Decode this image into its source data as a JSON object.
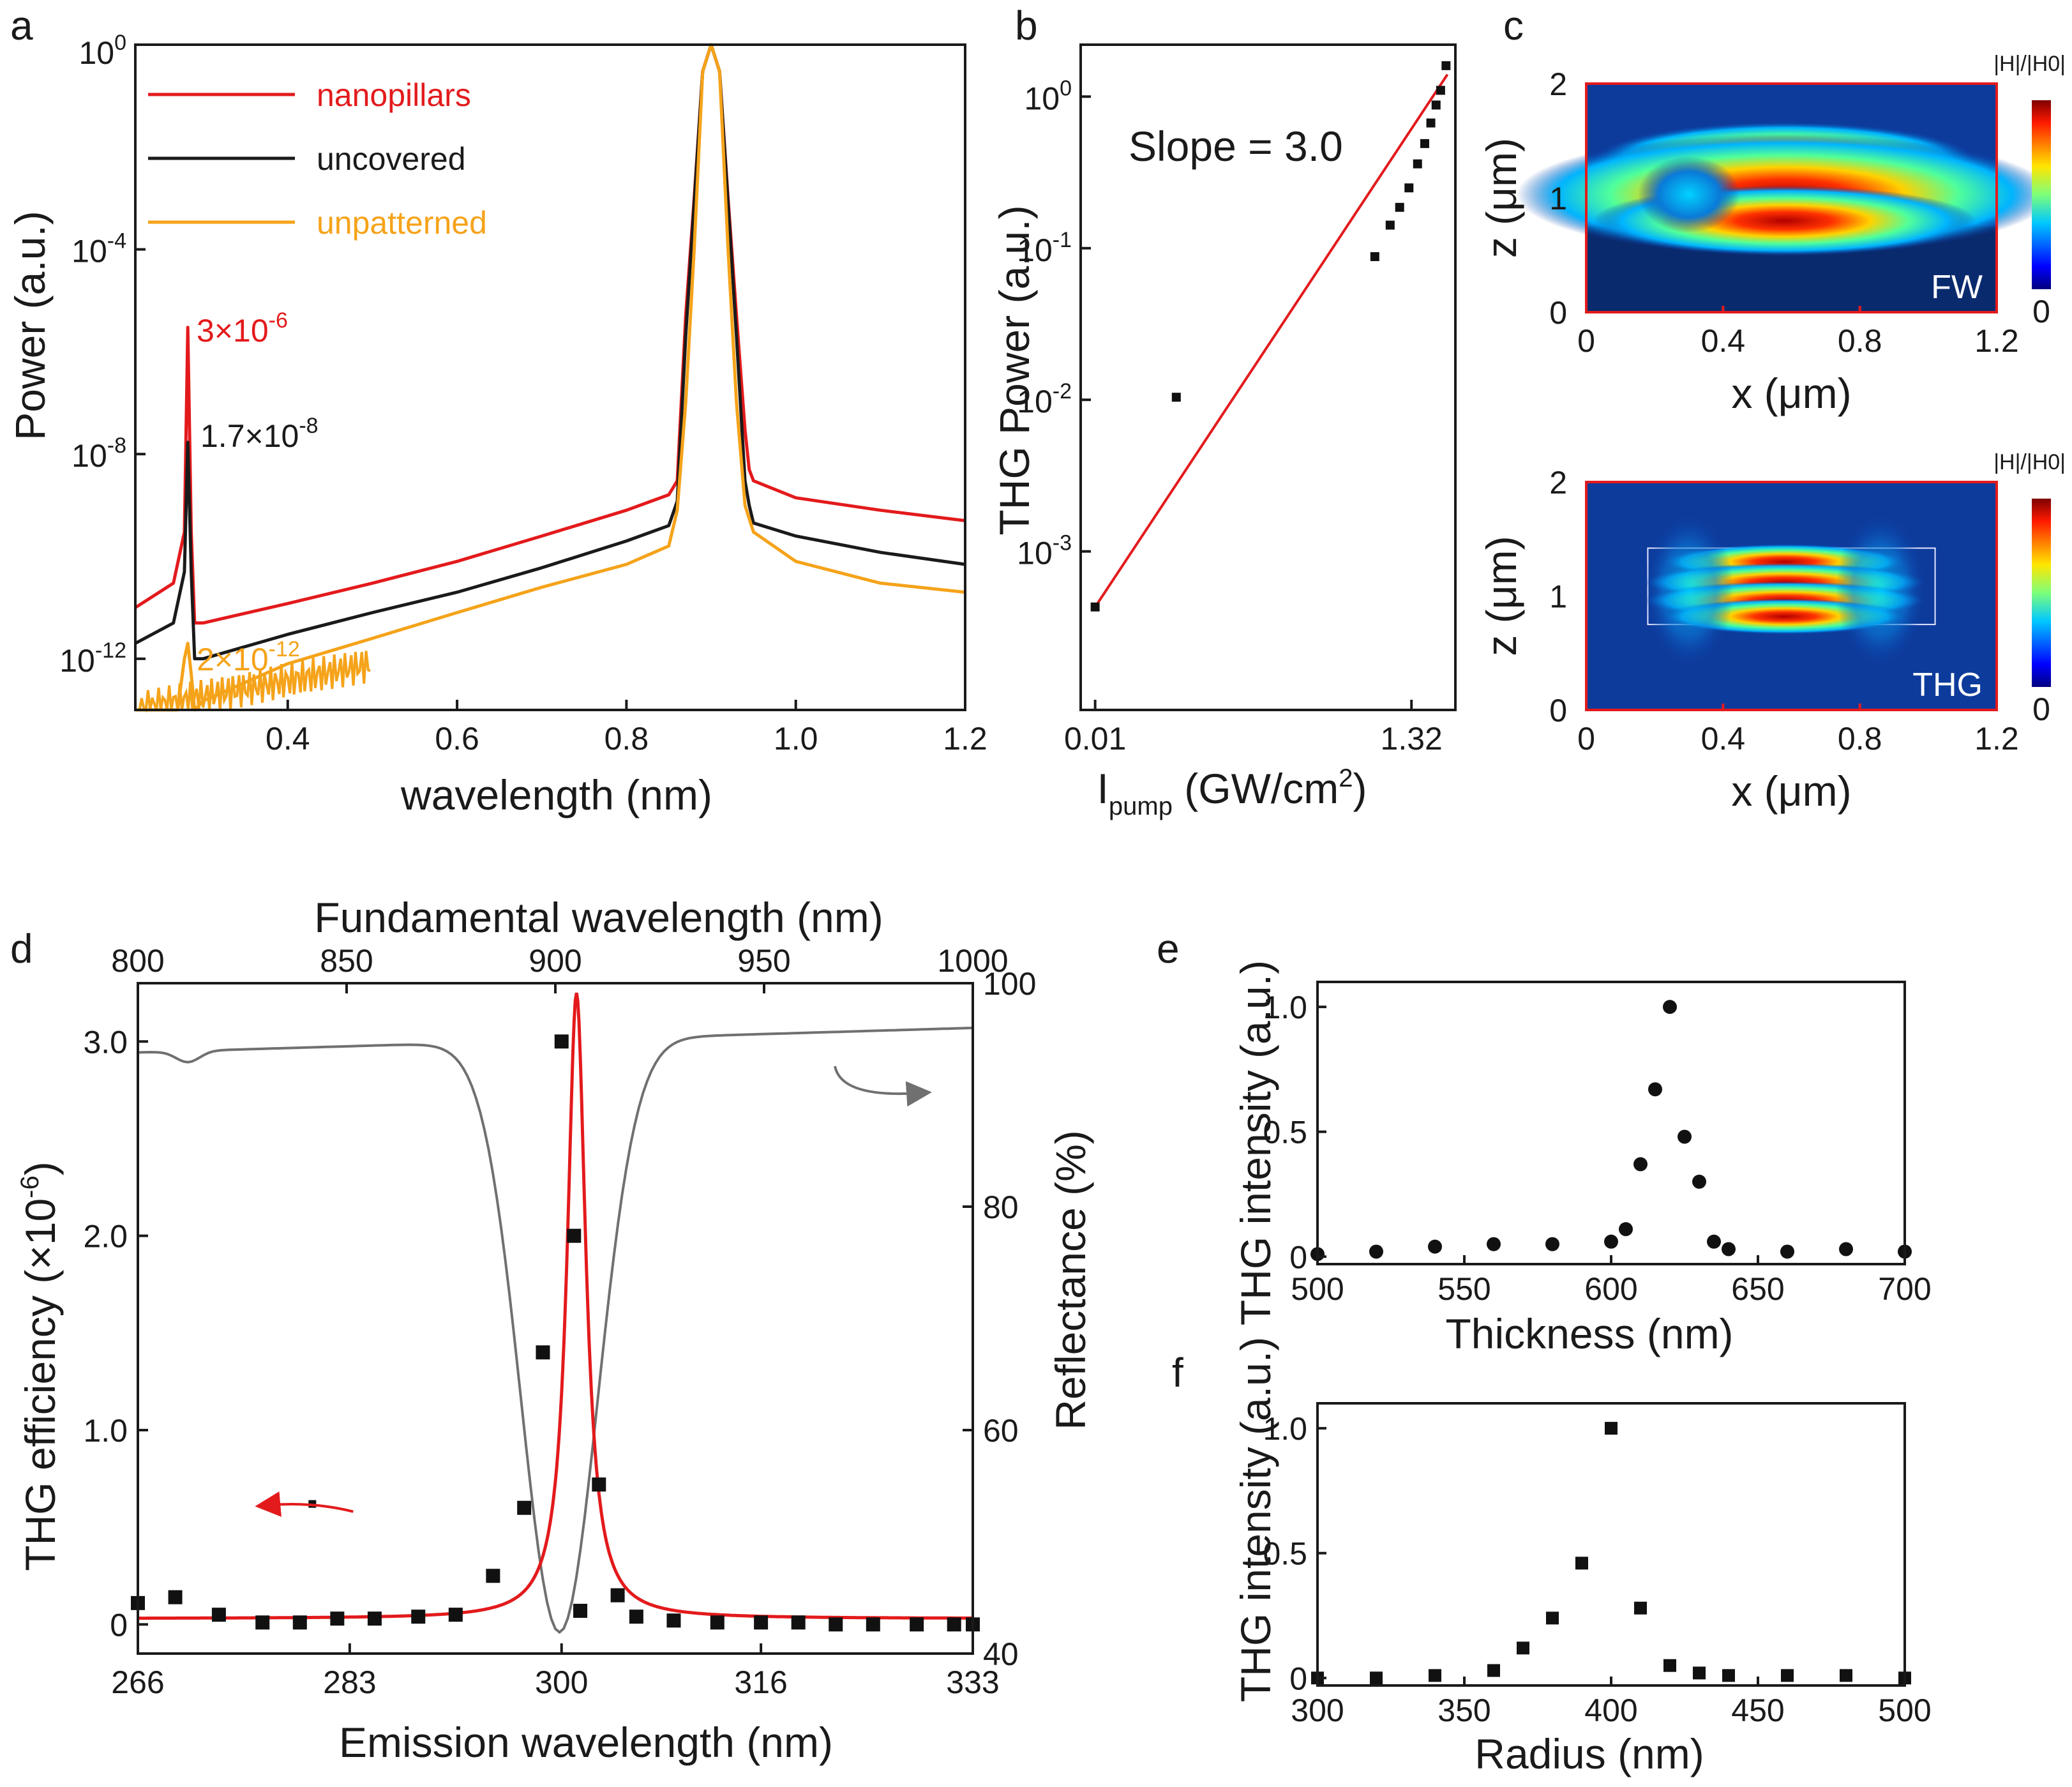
{
  "chart_data": [
    {
      "panel": "a",
      "type": "line",
      "xlabel": "wavelength (nm)",
      "ylabel": "Power (a.u.)",
      "xlim": [
        0.22,
        1.2
      ],
      "ylim": [
        1e-13,
        1
      ],
      "yscale": "log",
      "xticks": [
        "0.4",
        "0.6",
        "0.8",
        "1.0",
        "1.2"
      ],
      "yticks": [
        {
          "base": "10",
          "exp": "0"
        },
        {
          "base": "10",
          "exp": "-4"
        },
        {
          "base": "10",
          "exp": "-8"
        },
        {
          "base": "10",
          "exp": "-12"
        }
      ],
      "legend": [
        "nanopillars",
        "uncovered",
        "unpatterned"
      ],
      "legend_position": "top-left",
      "annotations": [
        {
          "text": "3×10",
          "exp": "-6",
          "color": "#e31a1c"
        },
        {
          "text": "1.7×10",
          "exp": "-8",
          "color": "#1a1a1a"
        },
        {
          "text": "2×10",
          "exp": "-12",
          "color": "#f5a31a"
        }
      ],
      "series": [
        {
          "name": "nanopillars",
          "color": "#e31a1c",
          "x": [
            0.22,
            0.265,
            0.278,
            0.282,
            0.286,
            0.29,
            0.3,
            0.4,
            0.5,
            0.6,
            0.7,
            0.8,
            0.85,
            0.86,
            0.87,
            0.88,
            0.89,
            0.9,
            0.91,
            0.92,
            0.93,
            0.94,
            0.945,
            0.95,
            1.0,
            1.1,
            1.2
          ],
          "y": [
            1e-11,
            3e-11,
            3e-10,
            3e-06,
            3e-10,
            5e-12,
            5e-12,
            1.2e-11,
            3e-11,
            8e-11,
            2.5e-10,
            8e-10,
            1.6e-09,
            3e-09,
            5e-06,
            0.001,
            0.3,
            1,
            0.3,
            0.001,
            5e-06,
            3e-08,
            5e-09,
            3e-09,
            1.4e-09,
            8e-10,
            5e-10
          ]
        },
        {
          "name": "uncovered",
          "color": "#1a1a1a",
          "x": [
            0.22,
            0.265,
            0.278,
            0.282,
            0.286,
            0.29,
            0.3,
            0.4,
            0.5,
            0.6,
            0.7,
            0.8,
            0.85,
            0.86,
            0.87,
            0.88,
            0.89,
            0.9,
            0.91,
            0.92,
            0.93,
            0.94,
            0.945,
            0.95,
            1.0,
            1.1,
            1.2
          ],
          "y": [
            2e-12,
            5e-12,
            5e-11,
            1.7e-08,
            5e-11,
            1e-12,
            1e-12,
            3e-12,
            8e-12,
            2e-11,
            6e-11,
            2e-10,
            4e-10,
            1.2e-09,
            2e-06,
            0.0008,
            0.3,
            1,
            0.3,
            0.0008,
            2e-06,
            3e-09,
            1e-09,
            4.5e-10,
            2.5e-10,
            1.2e-10,
            7e-11
          ]
        },
        {
          "name": "unpatterned",
          "color": "#f5a31a",
          "x": [
            0.22,
            0.27,
            0.278,
            0.282,
            0.286,
            0.29,
            0.3,
            0.4,
            0.5,
            0.6,
            0.7,
            0.8,
            0.85,
            0.86,
            0.87,
            0.88,
            0.89,
            0.9,
            0.91,
            0.92,
            0.93,
            0.94,
            0.95,
            1.0,
            1.1,
            1.2
          ],
          "y": [
            1e-13,
            1e-13,
            1e-12,
            2e-12,
            5e-13,
            1e-13,
            1.5e-13,
            8e-13,
            2.5e-12,
            8e-12,
            2.5e-11,
            7e-11,
            1.6e-10,
            8e-10,
            1e-07,
            0.0001,
            0.3,
            1,
            0.3,
            0.0001,
            1e-07,
            1e-09,
            3e-10,
            8e-11,
            3e-11,
            2e-11
          ]
        }
      ]
    },
    {
      "panel": "b",
      "type": "scatter",
      "xlabel": "I",
      "xlabel_sub": "pump",
      "xlabel_rest": " (GW/cm",
      "xlabel_sup": "2",
      "xlabel_end": ")",
      "ylabel": "THG Power (a.u.)",
      "xscale": "log",
      "yscale": "log",
      "xlim": [
        0.008,
        2.6
      ],
      "ylim": [
        9e-05,
        2.2
      ],
      "xticks": [
        "0.01",
        "1.32"
      ],
      "yticks": [
        {
          "base": "10",
          "exp": "0"
        },
        {
          "base": "10",
          "exp": "-1"
        },
        {
          "base": "10",
          "exp": "-2"
        },
        {
          "base": "10",
          "exp": "-3"
        }
      ],
      "annotation": "Slope = 3.0",
      "x": [
        0.01,
        0.035,
        0.75,
        0.95,
        1.1,
        1.27,
        1.45,
        1.62,
        1.78,
        1.93,
        2.07,
        2.25
      ],
      "y": [
        0.00043,
        0.0104,
        0.088,
        0.142,
        0.186,
        0.25,
        0.36,
        0.49,
        0.67,
        0.88,
        1.1,
        1.6
      ],
      "fit": {
        "slope": 3.0,
        "color": "#e31a1c",
        "x": [
          0.01,
          2.3
        ],
        "y": [
          0.00043,
          1.4
        ]
      }
    },
    {
      "panel": "c",
      "type": "heatmap",
      "maps": [
        {
          "label": "FW",
          "xlabel": "x (μm)",
          "ylabel": "z (μm)",
          "colorbar_title": "|H|/|H0|",
          "colorbar_min": "0",
          "xticks": [
            "0",
            "0.4",
            "0.8",
            "1.2"
          ],
          "yticks": [
            "0",
            "1",
            "2"
          ],
          "xlim": [
            0,
            1.2
          ],
          "ylim": [
            0,
            2
          ]
        },
        {
          "label": "THG",
          "xlabel": "x (μm)",
          "ylabel": "z (μm)",
          "colorbar_title": "|H|/|H0|",
          "colorbar_min": "0",
          "xticks": [
            "0",
            "0.4",
            "0.8",
            "1.2"
          ],
          "yticks": [
            "0",
            "1",
            "2"
          ],
          "xlim": [
            0,
            1.2
          ],
          "ylim": [
            0,
            2
          ]
        }
      ]
    },
    {
      "panel": "d",
      "type": "scatter",
      "xlabel": "Emission wavelength (nm)",
      "xlabel_top": "Fundamental wavelength (nm)",
      "ylabel": "THG efficiency (×10",
      "ylabel_exp": "-6",
      "ylabel_end": ")",
      "ylabel_right": "Reflectance (%)",
      "xlim": [
        266,
        333
      ],
      "xticks": [
        "266",
        "283",
        "300",
        "316",
        "333"
      ],
      "xlim_top": [
        800,
        1000
      ],
      "xticks_top": [
        "800",
        "850",
        "900",
        "950",
        "1000"
      ],
      "ylim": [
        -0.15,
        3.3
      ],
      "yticks": [
        "0",
        "1.0",
        "2.0",
        "3.0"
      ],
      "ylim_right": [
        40,
        100
      ],
      "yticks_right": [
        "40",
        "60",
        "80",
        "100"
      ],
      "efficiency_points": {
        "x": [
          266,
          269,
          272.5,
          276,
          279,
          282,
          285,
          288.5,
          291.5,
          294.5,
          297,
          298.5,
          300,
          301,
          301.5,
          303,
          304.5,
          306,
          309,
          312.5,
          316,
          319,
          322,
          325,
          328.5,
          331.5,
          333
        ],
        "y": [
          0.11,
          0.14,
          0.05,
          0.01,
          0.01,
          0.03,
          0.03,
          0.04,
          0.05,
          0.25,
          0.6,
          1.4,
          3.0,
          2.0,
          0.07,
          0.72,
          0.15,
          0.04,
          0.02,
          0.01,
          0.01,
          0.01,
          0.0,
          0.0,
          0.0,
          0.0,
          0.0
        ]
      },
      "fit_curve": {
        "type": "lorentzian",
        "center_nm": 301.2,
        "hwhm_nm": 0.9,
        "peak": 3.25,
        "baseline": 0.03,
        "color": "#e31a1c"
      },
      "reflectance_curve": {
        "color": "#707070",
        "dip_center_nm": 901,
        "dip_min_percent": 43,
        "baseline_percent": 96
      },
      "left_arrow_point": {
        "x": 280,
        "y": 0.62
      }
    },
    {
      "panel": "e",
      "type": "scatter",
      "xlabel": "Thickness (nm)",
      "ylabel": "THG intensity (a.u.)",
      "xlim": [
        500,
        700
      ],
      "ylim": [
        -0.03,
        1.1
      ],
      "xticks": [
        "500",
        "550",
        "600",
        "650",
        "700"
      ],
      "yticks": [
        "0",
        "0.5",
        "1.0"
      ],
      "marker": "circle",
      "x": [
        500,
        520,
        540,
        560,
        580,
        600,
        605,
        610,
        615,
        620,
        625,
        630,
        635,
        640,
        660,
        680,
        700
      ],
      "y": [
        0.01,
        0.02,
        0.04,
        0.05,
        0.05,
        0.06,
        0.11,
        0.37,
        0.67,
        1.0,
        0.48,
        0.3,
        0.06,
        0.03,
        0.02,
        0.03,
        0.02
      ]
    },
    {
      "panel": "f",
      "type": "scatter",
      "xlabel": "Radius (nm)",
      "ylabel": "THG intensity (a.u.)",
      "xlim": [
        300,
        500
      ],
      "ylim": [
        -0.03,
        1.1
      ],
      "xticks": [
        "300",
        "350",
        "400",
        "450",
        "500"
      ],
      "yticks": [
        "0",
        "0.5",
        "1.0"
      ],
      "marker": "square",
      "x": [
        300,
        320,
        340,
        360,
        370,
        380,
        390,
        400,
        410,
        420,
        430,
        440,
        460,
        480,
        500
      ],
      "y": [
        0.0,
        0.0,
        0.01,
        0.03,
        0.12,
        0.24,
        0.46,
        1.0,
        0.28,
        0.05,
        0.02,
        0.01,
        0.01,
        0.01,
        0.0
      ]
    }
  ]
}
